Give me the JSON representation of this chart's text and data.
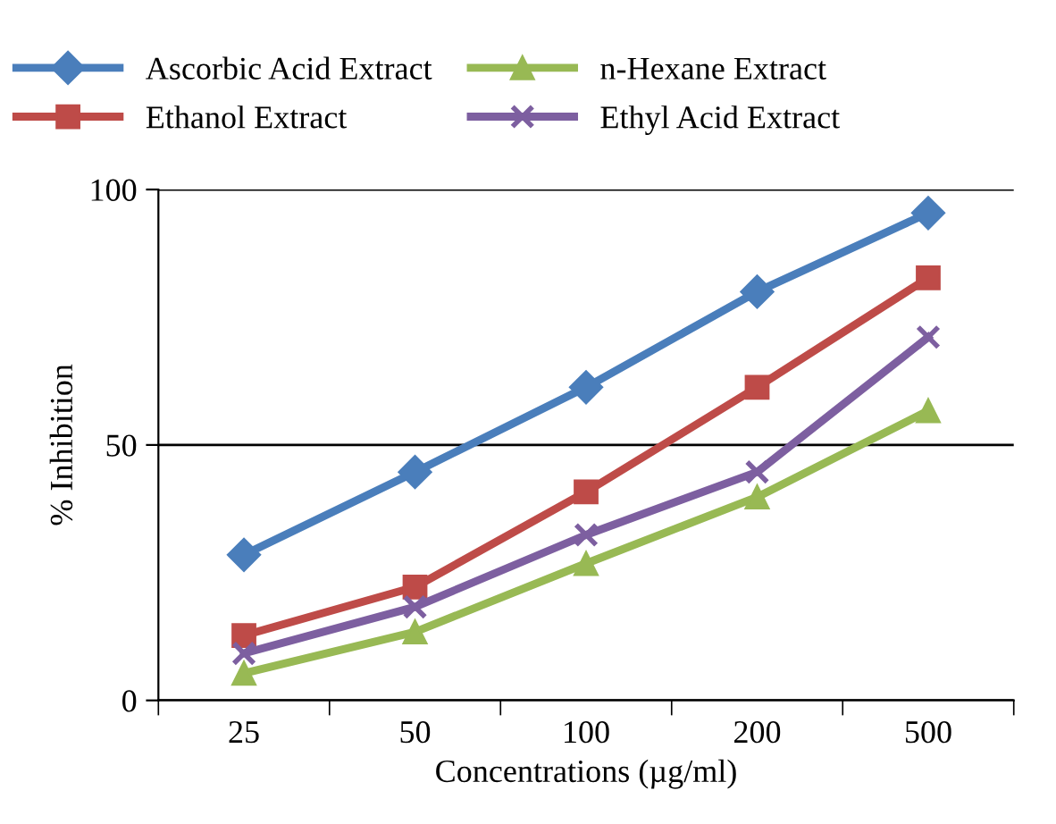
{
  "chart_data": {
    "type": "line",
    "xlabel": "Concentrations (µg/ml)",
    "ylabel": "% Inhibition",
    "categories": [
      "25",
      "50",
      "100",
      "200",
      "500"
    ],
    "ylim": [
      0,
      100
    ],
    "yticks": [
      0,
      50,
      100
    ],
    "grid": "y",
    "legend": "top",
    "line_style": "solid",
    "series": [
      {
        "name": "Ascorbic Acid Extract",
        "color": "#4a7ebb",
        "marker": "diamond",
        "values": [
          28.5,
          44.7,
          61.3,
          80,
          95.4
        ]
      },
      {
        "name": "Ethanol Extract",
        "color": "#be4b48",
        "marker": "square",
        "values": [
          12.7,
          22.2,
          40.8,
          61.3,
          82.7
        ]
      },
      {
        "name": "n-Hexane Extract",
        "color": "#98b954",
        "marker": "triangle",
        "values": [
          5.3,
          13.4,
          26.8,
          39.8,
          56.7
        ]
      },
      {
        "name": "Ethyl Acid Extract",
        "color": "#7d5fa0",
        "marker": "cross",
        "values": [
          9.2,
          18.3,
          32.4,
          44.7,
          71.1
        ]
      }
    ]
  }
}
